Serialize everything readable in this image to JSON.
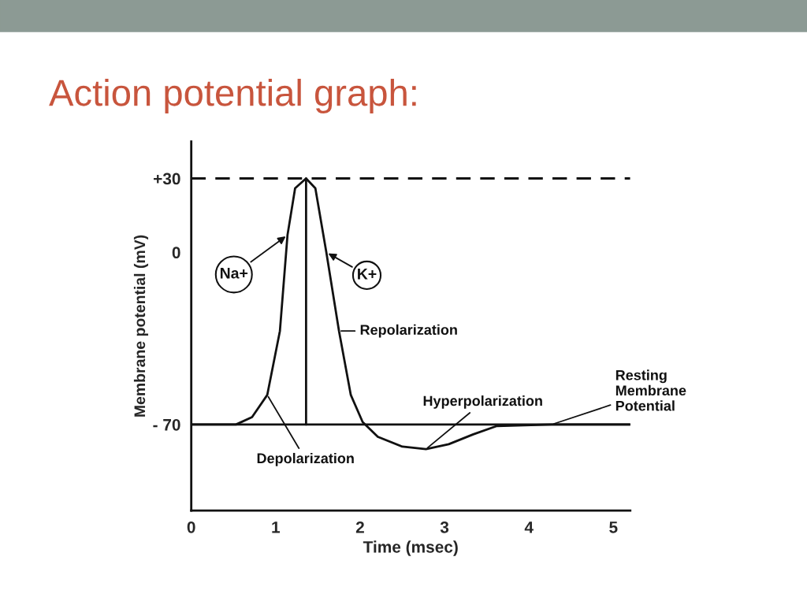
{
  "chart_data": {
    "type": "line",
    "title": "Action potential graph:",
    "xlabel": "Time (msec)",
    "ylabel": "Membrane potential (mV)",
    "series": [
      {
        "color": "#111111",
        "x": [
          0,
          0.53,
          0.72,
          0.9,
          1.05,
          1.14,
          1.23,
          1.36,
          1.47,
          1.6,
          1.75,
          1.89,
          2.03,
          2.21,
          2.5,
          2.78,
          3.05,
          3.34,
          3.62,
          4.27,
          5.2
        ],
        "values": [
          -70,
          -70,
          -67,
          -58,
          -32,
          7,
          26,
          30,
          26,
          0,
          -32,
          -58,
          -69,
          -75,
          -79,
          -80,
          -78,
          -74,
          -70.6,
          -70,
          -70
        ]
      },
      {
        "color": "#111111",
        "x": [
          0,
          5.2
        ],
        "values": [
          -70,
          -70
        ]
      },
      {
        "color": "#111111",
        "x": [
          1.36,
          1.36
        ],
        "values": [
          -70,
          30
        ]
      }
    ],
    "ref_lines": [
      {
        "axis": "y",
        "value": 30,
        "color": "#111111",
        "line_style": "dashed"
      }
    ],
    "annotations": [
      {
        "text": "Na+",
        "x": 1.14,
        "y": 7
      },
      {
        "text": "K+",
        "x": 1.6,
        "y": 0
      },
      {
        "text": "Repolarization",
        "x": 1.75,
        "y": -32
      },
      {
        "text": "Hyperpolarization",
        "x": 2.78,
        "y": -80
      },
      {
        "text": "Resting\nMembrane\nPotential",
        "x": 4.27,
        "y": -70
      },
      {
        "text": "Depolarization",
        "x": 0.9,
        "y": -58
      }
    ],
    "xlim": [
      0,
      5.2
    ],
    "ylim": [
      -105,
      45
    ],
    "xticks": [
      0,
      1,
      2,
      3,
      4,
      5
    ],
    "yticks": [
      {
        "value": 30,
        "label": "+30"
      },
      0,
      {
        "value": -70,
        "label": "- 70"
      }
    ],
    "grid": false,
    "legend": false,
    "marker": "none",
    "line_style": "solid"
  }
}
